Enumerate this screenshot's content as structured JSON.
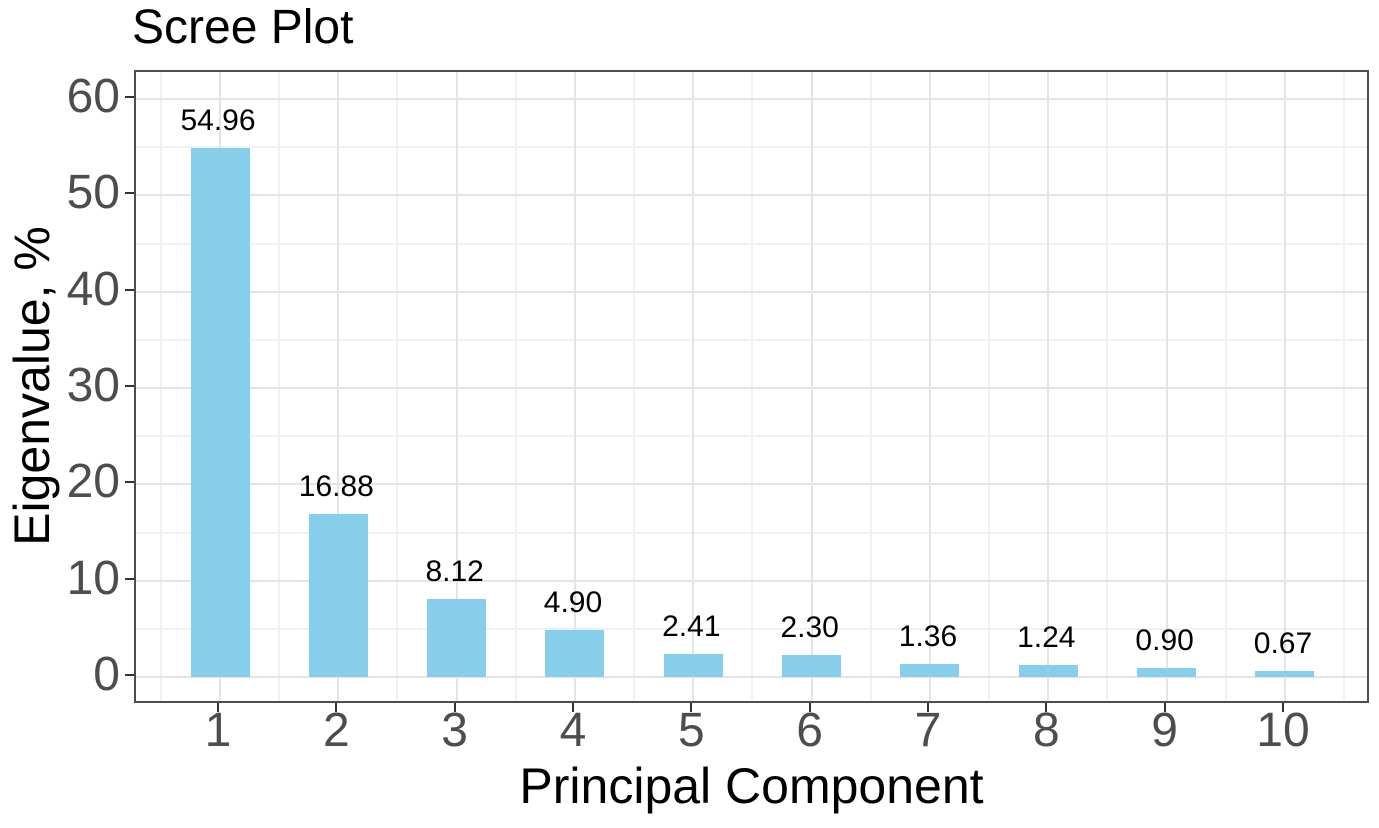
{
  "chart_data": {
    "type": "bar",
    "title": "Scree Plot",
    "xlabel": "Principal Component",
    "ylabel": "Eigenvalue, %",
    "categories": [
      "1",
      "2",
      "3",
      "4",
      "5",
      "6",
      "7",
      "8",
      "9",
      "10"
    ],
    "values": [
      54.96,
      16.88,
      8.12,
      4.9,
      2.41,
      2.3,
      1.36,
      1.24,
      0.9,
      0.67
    ],
    "bar_labels": [
      "54.96",
      "16.88",
      "8.12",
      "4.90",
      "2.41",
      "2.30",
      "1.36",
      "1.24",
      "0.90",
      "0.67"
    ],
    "y_ticks": [
      0,
      10,
      20,
      30,
      40,
      50,
      60
    ],
    "y_minor_ticks": [
      5,
      15,
      25,
      35,
      45,
      55
    ],
    "ylim": [
      -2.9,
      62.8
    ],
    "grid": "major-and-minor",
    "legend": false,
    "colors": {
      "bar_fill": "#87CEEB",
      "major_grid": "#e4e4e4",
      "minor_grid": "#f1f1f1",
      "panel_border": "#4d4d4d",
      "tick_mark": "#333333",
      "tick_label": "#4d4d4d",
      "text": "#000000",
      "background": "#ffffff"
    }
  }
}
